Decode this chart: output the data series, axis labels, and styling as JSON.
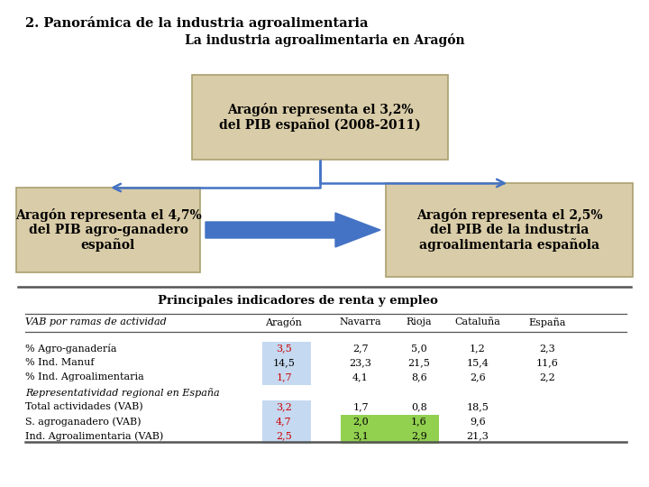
{
  "title_main": "2. Panorámica de la industria agroalimentaria",
  "subtitle": "La industria agroalimentaria en Aragón",
  "box_top_text": "Aragón representa el 3,2%\ndel PIB español (2008-2011)",
  "box_left_text": "Aragón representa el 4,7%\ndel PIB agro-ganadero\nespañol",
  "box_right_text": "Aragón representa el 2,5%\ndel PIB de la industria\nagroalimentaria española",
  "box_bg": "#d9cca8",
  "arrow_color": "#4472c4",
  "section_title": "Principales indicadores de renta y empleo",
  "table_header": [
    "VAB por ramas de actividad",
    "Aragón",
    "Navarra",
    "Rioja",
    "Cataluña",
    "España"
  ],
  "table_rows": [
    [
      "% Agro-ganadería",
      "3,5",
      "2,7",
      "5,0",
      "1,2",
      "2,3"
    ],
    [
      "% Ind. Manuf",
      "14,5",
      "23,3",
      "21,5",
      "15,4",
      "11,6"
    ],
    [
      "% Ind. Agroalimentaria",
      "1,7",
      "4,1",
      "8,6",
      "2,6",
      "2,2"
    ],
    [
      "Representatividad regional en España",
      "",
      "",
      "",
      "",
      ""
    ],
    [
      "Total actividades (VAB)",
      "3,2",
      "1,7",
      "0,8",
      "18,5",
      ""
    ],
    [
      "S. agroganadero (VAB)",
      "4,7",
      "2,0",
      "1,6",
      "9,6",
      ""
    ],
    [
      "Ind. Agroalimentaria (VAB)",
      "2,5",
      "3,1",
      "2,9",
      "21,3",
      ""
    ]
  ],
  "cell_blue_bg": "#c5d9f1",
  "cell_green_bg": "#92d050",
  "bg_color": "#ffffff",
  "separator_color": "#555555"
}
